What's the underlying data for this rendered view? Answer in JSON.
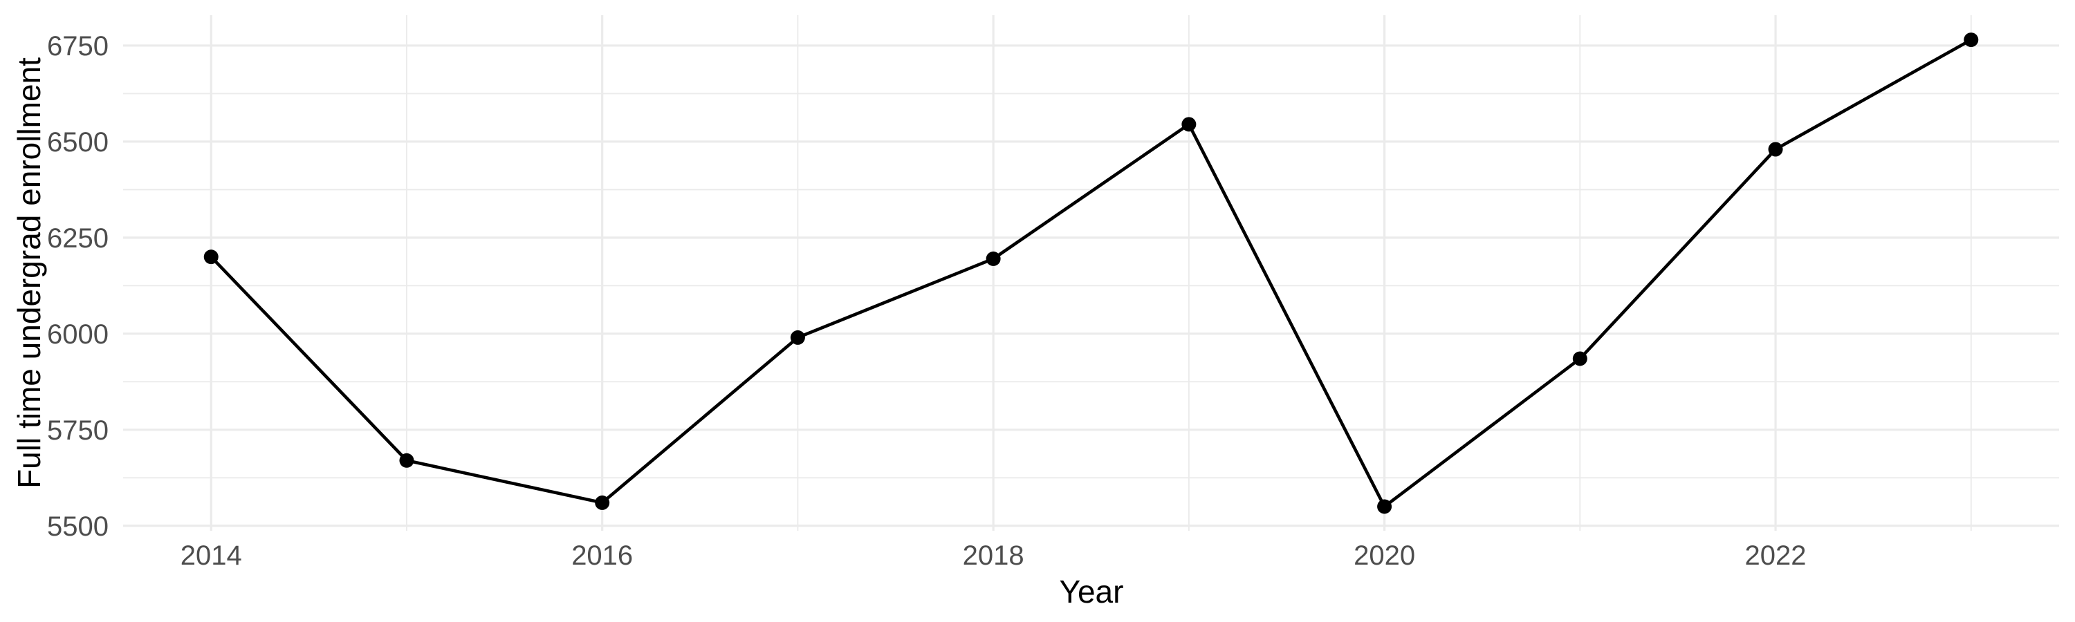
{
  "chart_data": {
    "type": "line",
    "title": "",
    "xlabel": "Year",
    "ylabel": "Full time undergrad enrollment",
    "x": [
      2014,
      2015,
      2016,
      2017,
      2018,
      2019,
      2020,
      2021,
      2022,
      2023
    ],
    "values": [
      6200,
      5670,
      5560,
      5990,
      6195,
      6545,
      5550,
      5935,
      6480,
      6765
    ],
    "x_range": [
      2013.55,
      2023.45
    ],
    "y_range": [
      5487,
      6829
    ],
    "x_ticks_major": [
      2014,
      2016,
      2018,
      2020,
      2022
    ],
    "x_ticks_minor": [
      2015,
      2017,
      2019,
      2021,
      2023
    ],
    "y_ticks_major": [
      5500,
      5750,
      6000,
      6250,
      6500,
      6750
    ],
    "y_ticks_minor": [
      5625,
      5875,
      6125,
      6375,
      6625
    ],
    "grid": true,
    "legend_position": "none",
    "line_color": "#000000",
    "point_color": "#000000",
    "grid_color": "#EBEBEB",
    "tick_label_color": "#4D4D4D",
    "axis_title_color": "#000000",
    "background_color": "#FFFFFF"
  }
}
